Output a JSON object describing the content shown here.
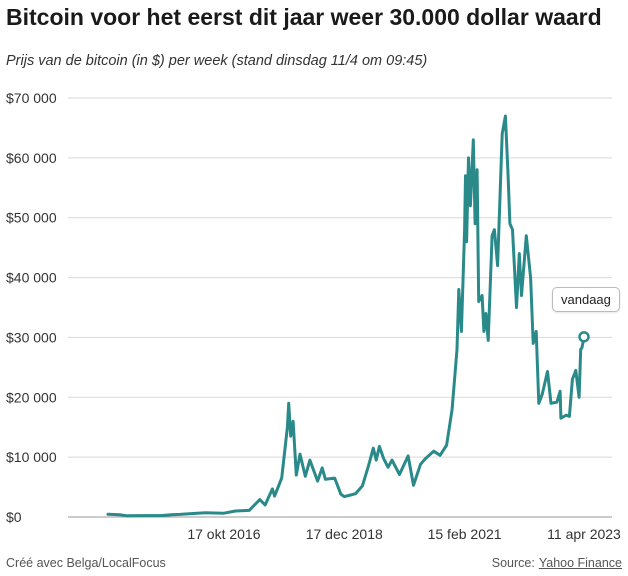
{
  "title": "Bitcoin voor het eerst dit jaar weer 30.000 dollar waard",
  "subtitle": "Prijs van de bitcoin (in $) per week (stand dinsdag 11/4 om 09:45)",
  "footer": {
    "credit": "Créé avec Belga/LocalFocus",
    "source_label": "Source:",
    "source_link": "Yahoo Finance"
  },
  "chart_data": {
    "type": "line",
    "title": "Bitcoin voor het eerst dit jaar weer 30.000 dollar waard",
    "subtitle": "Prijs van de bitcoin (in $) per week (stand dinsdag 11/4 om 09:45)",
    "xlabel": "",
    "ylabel": "",
    "ylim": [
      0,
      70000
    ],
    "yticks": [
      0,
      10000,
      20000,
      30000,
      40000,
      50000,
      60000,
      70000
    ],
    "ytick_labels": [
      "$0",
      "$10 000",
      "$20 000",
      "$30 000",
      "$40 000",
      "$50 000",
      "$60 000",
      "$70 000"
    ],
    "xlim": [
      "2014-09-16",
      "2023-04-11"
    ],
    "xtick_labels": [
      {
        "date": "2016-10-17",
        "label": "17 okt 2016"
      },
      {
        "date": "2018-12-17",
        "label": "17 dec 2018"
      },
      {
        "date": "2021-02-15",
        "label": "15 feb 2021"
      },
      {
        "date": "2023-04-11",
        "label": "11 apr 2023"
      }
    ],
    "grid": true,
    "line_color": "#2a8a8a",
    "annotation": {
      "label": "vandaag",
      "date": "2023-04-11",
      "value": 30100
    },
    "series": [
      {
        "values": [
          [
            "2014-09-16",
            450
          ],
          [
            "2014-12-01",
            380
          ],
          [
            "2015-01-15",
            220
          ],
          [
            "2015-05-01",
            235
          ],
          [
            "2015-09-01",
            230
          ],
          [
            "2015-11-05",
            380
          ],
          [
            "2016-01-01",
            430
          ],
          [
            "2016-06-15",
            700
          ],
          [
            "2016-10-17",
            640
          ],
          [
            "2017-01-01",
            1000
          ],
          [
            "2017-04-01",
            1100
          ],
          [
            "2017-06-10",
            2900
          ],
          [
            "2017-07-15",
            2000
          ],
          [
            "2017-09-01",
            4700
          ],
          [
            "2017-09-15",
            3500
          ],
          [
            "2017-11-01",
            6500
          ],
          [
            "2017-12-08",
            15000
          ],
          [
            "2017-12-17",
            19000
          ],
          [
            "2017-12-30",
            13500
          ],
          [
            "2018-01-15",
            16000
          ],
          [
            "2018-02-05",
            7000
          ],
          [
            "2018-03-01",
            10500
          ],
          [
            "2018-04-05",
            6800
          ],
          [
            "2018-05-05",
            9500
          ],
          [
            "2018-06-25",
            6000
          ],
          [
            "2018-07-25",
            8200
          ],
          [
            "2018-08-15",
            6300
          ],
          [
            "2018-10-15",
            6500
          ],
          [
            "2018-11-25",
            3800
          ],
          [
            "2018-12-17",
            3400
          ],
          [
            "2019-01-15",
            3600
          ],
          [
            "2019-03-01",
            3900
          ],
          [
            "2019-04-15",
            5200
          ],
          [
            "2019-05-25",
            8500
          ],
          [
            "2019-06-26",
            11500
          ],
          [
            "2019-07-15",
            9500
          ],
          [
            "2019-08-05",
            11800
          ],
          [
            "2019-09-01",
            9800
          ],
          [
            "2019-10-01",
            8300
          ],
          [
            "2019-10-27",
            9500
          ],
          [
            "2019-12-15",
            7100
          ],
          [
            "2020-02-10",
            10200
          ],
          [
            "2020-03-16",
            5300
          ],
          [
            "2020-05-01",
            8800
          ],
          [
            "2020-06-01",
            9700
          ],
          [
            "2020-07-27",
            11000
          ],
          [
            "2020-09-07",
            10300
          ],
          [
            "2020-10-20",
            12000
          ],
          [
            "2020-11-25",
            18000
          ],
          [
            "2020-12-27",
            28000
          ],
          [
            "2021-01-08",
            38000
          ],
          [
            "2021-01-25",
            31000
          ],
          [
            "2021-02-15",
            48000
          ],
          [
            "2021-02-21",
            57000
          ],
          [
            "2021-02-28",
            46000
          ],
          [
            "2021-03-13",
            60000
          ],
          [
            "2021-03-25",
            52000
          ],
          [
            "2021-04-13",
            63000
          ],
          [
            "2021-04-25",
            49000
          ],
          [
            "2021-05-08",
            58000
          ],
          [
            "2021-05-19",
            36000
          ],
          [
            "2021-06-10",
            37000
          ],
          [
            "2021-06-22",
            31000
          ],
          [
            "2021-07-05",
            34000
          ],
          [
            "2021-07-20",
            29500
          ],
          [
            "2021-08-15",
            47000
          ],
          [
            "2021-08-30",
            48000
          ],
          [
            "2021-09-20",
            42000
          ],
          [
            "2021-10-20",
            64000
          ],
          [
            "2021-11-10",
            67000
          ],
          [
            "2021-11-28",
            57000
          ],
          [
            "2021-12-10",
            49000
          ],
          [
            "2021-12-27",
            48000
          ],
          [
            "2022-01-22",
            35000
          ],
          [
            "2022-02-10",
            44000
          ],
          [
            "2022-02-24",
            37000
          ],
          [
            "2022-03-28",
            47000
          ],
          [
            "2022-04-25",
            40000
          ],
          [
            "2022-05-12",
            29000
          ],
          [
            "2022-06-01",
            31000
          ],
          [
            "2022-06-18",
            19000
          ],
          [
            "2022-07-10",
            20500
          ],
          [
            "2022-08-14",
            24300
          ],
          [
            "2022-09-06",
            19000
          ],
          [
            "2022-10-15",
            19200
          ],
          [
            "2022-11-05",
            21000
          ],
          [
            "2022-11-10",
            16500
          ],
          [
            "2022-12-15",
            17000
          ],
          [
            "2023-01-05",
            16800
          ],
          [
            "2023-01-25",
            23000
          ],
          [
            "2023-02-16",
            24500
          ],
          [
            "2023-03-10",
            20000
          ],
          [
            "2023-03-20",
            28000
          ],
          [
            "2023-03-29",
            28300
          ],
          [
            "2023-04-11",
            30100
          ]
        ]
      }
    ]
  }
}
